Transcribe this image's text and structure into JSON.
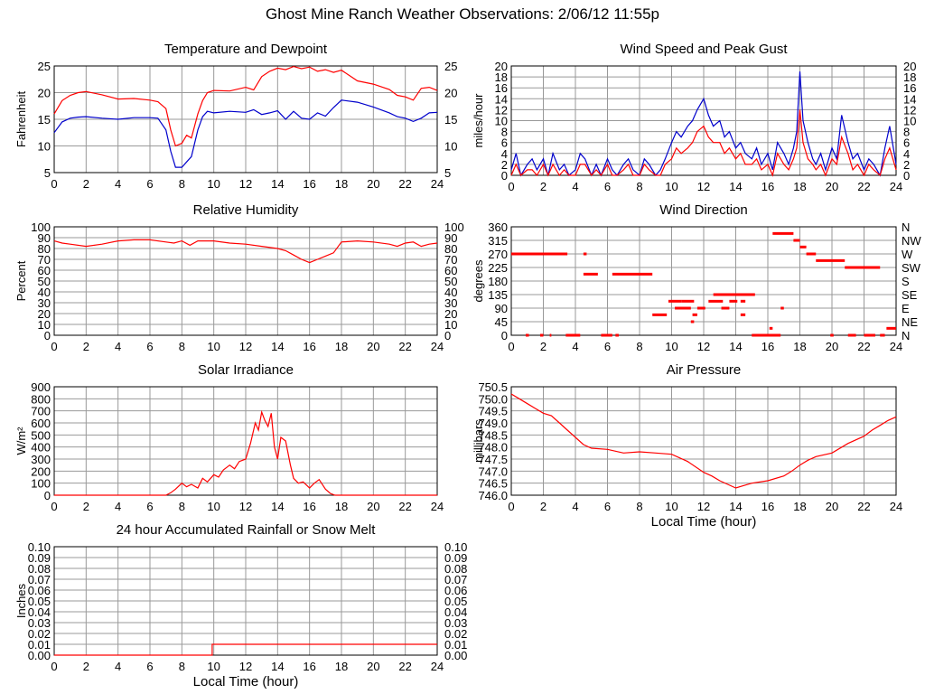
{
  "title": "Ghost Mine Ranch Weather Observations: 2/06/12 11:55p",
  "colors": {
    "red": "#ff0000",
    "blue": "#0000cc",
    "grid": "#999999",
    "frame": "#000000"
  },
  "chart_data": [
    {
      "id": "temp",
      "type": "line",
      "title": "Temperature and Dewpoint",
      "ylabel": "Fahrenheit",
      "xlabel": "",
      "xlim": [
        0,
        24
      ],
      "ylim": [
        5,
        25
      ],
      "yticks": [
        5,
        10,
        15,
        20,
        25
      ],
      "right_axis": true,
      "series": [
        {
          "color": "#ff0000",
          "x": [
            0,
            0.5,
            1,
            1.5,
            2,
            3,
            4,
            5,
            6,
            6.5,
            7,
            7.3,
            7.6,
            8,
            8.3,
            8.6,
            9,
            9.3,
            9.6,
            10,
            11,
            12,
            12.5,
            13,
            13.5,
            14,
            14.5,
            15,
            15.5,
            16,
            16.5,
            17,
            17.5,
            18,
            19,
            20,
            21,
            21.5,
            22,
            22.5,
            23,
            23.5,
            24
          ],
          "y": [
            16,
            18.5,
            19.5,
            20,
            20.2,
            19.6,
            18.8,
            18.9,
            18.6,
            18.3,
            17,
            13,
            10,
            10.5,
            12,
            11.5,
            16,
            18.5,
            20,
            20.4,
            20.3,
            21,
            20.5,
            23,
            24,
            24.6,
            24.3,
            24.9,
            24.5,
            24.8,
            24,
            24.3,
            23.8,
            24.2,
            22.2,
            21.6,
            20.6,
            19.5,
            19.2,
            18.6,
            20.8,
            21,
            20.4
          ]
        },
        {
          "color": "#0000cc",
          "x": [
            0,
            0.5,
            1,
            1.5,
            2,
            3,
            4,
            5,
            6,
            6.5,
            7,
            7.3,
            7.6,
            8,
            8.3,
            8.6,
            9,
            9.3,
            9.6,
            10,
            11,
            12,
            12.5,
            13,
            13.5,
            14,
            14.5,
            15,
            15.5,
            16,
            16.5,
            17,
            17.5,
            18,
            19,
            20,
            21,
            21.5,
            22,
            22.5,
            23,
            23.5,
            24
          ],
          "y": [
            12.5,
            14.5,
            15.2,
            15.4,
            15.5,
            15.2,
            15,
            15.3,
            15.3,
            15.2,
            13,
            9,
            6,
            6,
            7,
            8,
            13,
            15.5,
            16.5,
            16.2,
            16.5,
            16.3,
            16.8,
            15.9,
            16.2,
            16.6,
            15,
            16.5,
            15.2,
            15,
            16.2,
            15.6,
            17.2,
            18.6,
            18.2,
            17.3,
            16.2,
            15.5,
            15.2,
            14.6,
            15.2,
            16.2,
            16.3
          ]
        }
      ]
    },
    {
      "id": "wind",
      "type": "line",
      "title": "Wind Speed and Peak Gust",
      "ylabel": "miles/hour",
      "xlabel": "",
      "xlim": [
        0,
        24
      ],
      "ylim": [
        0,
        20
      ],
      "yticks": [
        0,
        2,
        4,
        6,
        8,
        10,
        12,
        14,
        16,
        18,
        20
      ],
      "right_axis": true,
      "series": [
        {
          "color": "#0000cc",
          "x": [
            0,
            0.3,
            0.6,
            1,
            1.3,
            1.6,
            2,
            2.3,
            2.6,
            3,
            3.3,
            3.6,
            4,
            4.3,
            4.6,
            5,
            5.3,
            5.6,
            6,
            6.3,
            6.6,
            7,
            7.3,
            7.6,
            8,
            8.3,
            8.6,
            9,
            9.3,
            9.6,
            10,
            10.3,
            10.6,
            11,
            11.3,
            11.6,
            12,
            12.3,
            12.6,
            13,
            13.3,
            13.6,
            14,
            14.3,
            14.6,
            15,
            15.3,
            15.6,
            16,
            16.3,
            16.6,
            17,
            17.3,
            17.6,
            17.8,
            18,
            18.2,
            18.5,
            18.8,
            19,
            19.3,
            19.6,
            20,
            20.3,
            20.6,
            21,
            21.3,
            21.6,
            22,
            22.3,
            22.6,
            23,
            23.3,
            23.6,
            24
          ],
          "y": [
            1,
            4,
            0,
            2,
            3,
            1,
            3,
            0,
            4,
            1,
            2,
            0,
            1,
            4,
            3,
            0,
            2,
            0,
            3,
            1,
            0,
            2,
            3,
            1,
            0,
            3,
            2,
            0,
            1,
            3,
            6,
            8,
            7,
            9,
            10,
            12,
            14,
            11,
            9,
            10,
            7,
            8,
            5,
            6,
            4,
            3,
            5,
            2,
            4,
            1,
            6,
            4,
            2,
            5,
            8,
            19,
            10,
            6,
            3,
            2,
            4,
            1,
            5,
            3,
            11,
            6,
            3,
            4,
            1,
            3,
            2,
            0,
            5,
            9,
            2
          ]
        },
        {
          "color": "#ff0000",
          "x": [
            0,
            0.3,
            0.6,
            1,
            1.3,
            1.6,
            2,
            2.3,
            2.6,
            3,
            3.3,
            3.6,
            4,
            4.3,
            4.6,
            5,
            5.3,
            5.6,
            6,
            6.3,
            6.6,
            7,
            7.3,
            7.6,
            8,
            8.3,
            8.6,
            9,
            9.3,
            9.6,
            10,
            10.3,
            10.6,
            11,
            11.3,
            11.6,
            12,
            12.3,
            12.6,
            13,
            13.3,
            13.6,
            14,
            14.3,
            14.6,
            15,
            15.3,
            15.6,
            16,
            16.3,
            16.6,
            17,
            17.3,
            17.6,
            17.8,
            18,
            18.2,
            18.5,
            18.8,
            19,
            19.3,
            19.6,
            20,
            20.3,
            20.6,
            21,
            21.3,
            21.6,
            22,
            22.3,
            22.6,
            23,
            23.3,
            23.6,
            24
          ],
          "y": [
            0,
            2,
            0,
            1,
            1,
            0,
            2,
            0,
            2,
            0,
            1,
            0,
            0,
            2,
            2,
            0,
            1,
            0,
            2,
            0,
            0,
            1,
            2,
            0,
            0,
            2,
            1,
            0,
            0,
            2,
            3,
            5,
            4,
            5,
            6,
            8,
            9,
            7,
            6,
            6,
            4,
            5,
            3,
            4,
            2,
            2,
            3,
            1,
            2,
            0,
            4,
            2,
            1,
            3,
            5,
            12,
            6,
            3,
            2,
            1,
            2,
            0,
            3,
            2,
            7,
            4,
            1,
            2,
            0,
            2,
            1,
            0,
            3,
            5,
            1
          ]
        }
      ]
    },
    {
      "id": "rh",
      "type": "line",
      "title": "Relative Humidity",
      "ylabel": "Percent",
      "xlabel": "",
      "xlim": [
        0,
        24
      ],
      "ylim": [
        0,
        100
      ],
      "yticks": [
        0,
        10,
        20,
        30,
        40,
        50,
        60,
        70,
        80,
        90,
        100
      ],
      "right_axis": true,
      "series": [
        {
          "color": "#ff0000",
          "x": [
            0,
            0.5,
            1,
            2,
            3,
            4,
            5,
            6,
            7,
            7.5,
            8,
            8.5,
            9,
            10,
            11,
            12,
            13,
            14,
            14.5,
            15,
            15.5,
            16,
            16.5,
            17,
            17.5,
            18,
            19,
            20,
            21,
            21.5,
            22,
            22.5,
            23,
            23.5,
            24
          ],
          "y": [
            87,
            85,
            84,
            82,
            84,
            87,
            88,
            88,
            86,
            85,
            87,
            83,
            87,
            87,
            85,
            84,
            82,
            80,
            78,
            74,
            70,
            67,
            70,
            73,
            76,
            86,
            87,
            86,
            84,
            82,
            85,
            86,
            82,
            84,
            85
          ]
        }
      ]
    },
    {
      "id": "wdir",
      "type": "scatter",
      "title": "Wind Direction",
      "ylabel": "degrees",
      "xlabel": "",
      "xlim": [
        0,
        24
      ],
      "ylim": [
        0,
        360
      ],
      "yticks": [
        0,
        45,
        90,
        135,
        180,
        225,
        270,
        315,
        360
      ],
      "right_labels": [
        "N",
        "NE",
        "E",
        "SE",
        "S",
        "SW",
        "W",
        "NW",
        "N"
      ],
      "segments": [
        {
          "x0": 0,
          "x1": 3.5,
          "y": 270
        },
        {
          "x0": 4.5,
          "x1": 4.7,
          "y": 270
        },
        {
          "x0": 0.9,
          "x1": 1.1,
          "y": 0
        },
        {
          "x0": 1.8,
          "x1": 2,
          "y": 0
        },
        {
          "x0": 2.4,
          "x1": 2.5,
          "y": 0
        },
        {
          "x0": 3.4,
          "x1": 4.3,
          "y": 0
        },
        {
          "x0": 5.6,
          "x1": 6.3,
          "y": 0
        },
        {
          "x0": 6.5,
          "x1": 6.7,
          "y": 0
        },
        {
          "x0": 4.5,
          "x1": 5.4,
          "y": 203
        },
        {
          "x0": 6.3,
          "x1": 8.8,
          "y": 203
        },
        {
          "x0": 8.8,
          "x1": 9.7,
          "y": 68
        },
        {
          "x0": 9.8,
          "x1": 10.6,
          "y": 113
        },
        {
          "x0": 10.2,
          "x1": 11.2,
          "y": 90
        },
        {
          "x0": 10.6,
          "x1": 11.4,
          "y": 113
        },
        {
          "x0": 11.3,
          "x1": 11.6,
          "y": 68
        },
        {
          "x0": 11.2,
          "x1": 11.4,
          "y": 45
        },
        {
          "x0": 11.6,
          "x1": 12.1,
          "y": 90
        },
        {
          "x0": 12.3,
          "x1": 13.2,
          "y": 113
        },
        {
          "x0": 12.6,
          "x1": 15.2,
          "y": 135
        },
        {
          "x0": 13.1,
          "x1": 13.6,
          "y": 90
        },
        {
          "x0": 13.6,
          "x1": 14.1,
          "y": 113
        },
        {
          "x0": 14.3,
          "x1": 14.6,
          "y": 113
        },
        {
          "x0": 14.3,
          "x1": 14.6,
          "y": 68
        },
        {
          "x0": 15,
          "x1": 16.8,
          "y": 0
        },
        {
          "x0": 16.1,
          "x1": 16.3,
          "y": 23
        },
        {
          "x0": 16.8,
          "x1": 17,
          "y": 90
        },
        {
          "x0": 16.3,
          "x1": 17.6,
          "y": 338
        },
        {
          "x0": 17.6,
          "x1": 18,
          "y": 315
        },
        {
          "x0": 18,
          "x1": 18.4,
          "y": 293
        },
        {
          "x0": 18.4,
          "x1": 19,
          "y": 270
        },
        {
          "x0": 19,
          "x1": 20.8,
          "y": 248
        },
        {
          "x0": 20.8,
          "x1": 23,
          "y": 225
        },
        {
          "x0": 19.9,
          "x1": 20.1,
          "y": 0
        },
        {
          "x0": 21,
          "x1": 21.5,
          "y": 0
        },
        {
          "x0": 22,
          "x1": 22.7,
          "y": 0
        },
        {
          "x0": 23,
          "x1": 23.3,
          "y": 0
        },
        {
          "x0": 23.4,
          "x1": 24,
          "y": 23
        }
      ]
    },
    {
      "id": "solar",
      "type": "line",
      "title": "Solar Irradiance",
      "ylabel": "W/m²",
      "xlabel": "",
      "xlim": [
        0,
        24
      ],
      "ylim": [
        0,
        900
      ],
      "yticks": [
        0,
        100,
        200,
        300,
        400,
        500,
        600,
        700,
        800,
        900
      ],
      "right_axis": false,
      "series": [
        {
          "color": "#ff0000",
          "x": [
            0,
            7,
            7.3,
            7.6,
            8,
            8.3,
            8.6,
            9,
            9.3,
            9.6,
            10,
            10.3,
            10.6,
            11,
            11.3,
            11.6,
            12,
            12.3,
            12.6,
            12.8,
            13,
            13.2,
            13.4,
            13.6,
            13.8,
            14,
            14.2,
            14.5,
            14.8,
            15,
            15.3,
            15.6,
            16,
            16.3,
            16.6,
            17,
            17.3,
            17.6,
            24
          ],
          "y": [
            0,
            0,
            20,
            50,
            100,
            70,
            90,
            60,
            140,
            110,
            170,
            150,
            210,
            250,
            220,
            280,
            300,
            430,
            600,
            540,
            690,
            620,
            570,
            680,
            400,
            300,
            480,
            450,
            250,
            140,
            100,
            110,
            60,
            100,
            130,
            50,
            15,
            0,
            0
          ]
        }
      ]
    },
    {
      "id": "pressure",
      "type": "line",
      "title": "Air Pressure",
      "ylabel": "millibars",
      "xlabel": "Local Time (hour)",
      "xlim": [
        0,
        24
      ],
      "ylim": [
        746.0,
        750.5
      ],
      "yticks": [
        746.0,
        746.5,
        747.0,
        747.5,
        748.0,
        748.5,
        749.0,
        749.5,
        750.0,
        750.5
      ],
      "right_axis": false,
      "series": [
        {
          "color": "#ff0000",
          "x": [
            0,
            0.5,
            1,
            1.5,
            2,
            2.5,
            3,
            3.5,
            4,
            4.5,
            5,
            6,
            7,
            8,
            9,
            10,
            11,
            12,
            12.5,
            13,
            13.5,
            14,
            14.5,
            15,
            16,
            17,
            17.5,
            18,
            18.5,
            19,
            20,
            21,
            22,
            22.5,
            23,
            23.5,
            24
          ],
          "y": [
            750.2,
            750.0,
            749.8,
            749.6,
            749.4,
            749.3,
            749.0,
            748.7,
            748.4,
            748.1,
            747.95,
            747.9,
            747.75,
            747.8,
            747.75,
            747.7,
            747.4,
            746.95,
            746.8,
            746.6,
            746.45,
            746.3,
            746.4,
            746.5,
            746.6,
            746.8,
            747.0,
            747.25,
            747.45,
            747.6,
            747.75,
            748.15,
            748.45,
            748.7,
            748.9,
            749.1,
            749.25
          ]
        }
      ]
    },
    {
      "id": "rain",
      "type": "line",
      "title": "24 hour Accumulated Rainfall or Snow Melt",
      "ylabel": "Inches",
      "xlabel": "Local Time (hour)",
      "xlim": [
        0,
        24
      ],
      "ylim": [
        0,
        0.1
      ],
      "yticks": [
        0,
        0.01,
        0.02,
        0.03,
        0.04,
        0.05,
        0.06,
        0.07,
        0.08,
        0.09,
        0.1
      ],
      "ytick_decimals": 2,
      "right_axis": true,
      "series": [
        {
          "color": "#ff0000",
          "step": true,
          "x": [
            0,
            9.9,
            9.9,
            24
          ],
          "y": [
            0,
            0,
            0.01,
            0.01
          ]
        }
      ]
    }
  ]
}
